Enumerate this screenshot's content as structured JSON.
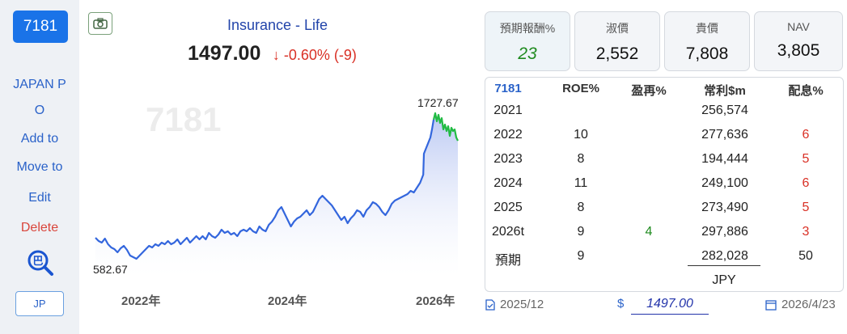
{
  "sidebar": {
    "code": "7181",
    "name_line1": "JAPAN P",
    "name_line2": "O",
    "add_to": "Add to",
    "move_to": "Move to",
    "edit": "Edit",
    "delete": "Delete",
    "ba_icon_text": "巴",
    "market_button": "JP"
  },
  "header": {
    "sector": "Insurance - Life",
    "price": "1497.00",
    "change": "-0.60% (-9)"
  },
  "chart": {
    "watermark": "7181",
    "high_label": "1727.67",
    "low_label": "582.67",
    "x_ticks": [
      "2022年",
      "2024年",
      "2026年"
    ]
  },
  "stats": [
    {
      "label": "預期報酬%",
      "value": "23"
    },
    {
      "label": "淑價",
      "value": "2,552"
    },
    {
      "label": "貴價",
      "value": "7,808"
    },
    {
      "label": "NAV",
      "value": "3,805"
    }
  ],
  "table": {
    "headers": [
      "7181",
      "ROE%",
      "盈再%",
      "常利$m",
      "配息%"
    ],
    "rows": [
      [
        "2021",
        "",
        "",
        "256,574",
        ""
      ],
      [
        "2022",
        "10",
        "",
        "277,636",
        "6"
      ],
      [
        "2023",
        "8",
        "",
        "194,444",
        "5"
      ],
      [
        "2024",
        "11",
        "",
        "249,100",
        "6"
      ],
      [
        "2025",
        "8",
        "",
        "273,490",
        "5"
      ],
      [
        "2026t",
        "9",
        "4",
        "297,886",
        "3"
      ],
      [
        "預期",
        "9",
        "",
        "282,028",
        "50"
      ]
    ],
    "currency": "JPY"
  },
  "footer": {
    "report_period": "2025/12",
    "currency_symbol": "$",
    "price_input": "1497.00",
    "date": "2026/4/23"
  },
  "colors": {
    "accent": "#1a73e8",
    "line": "#3366dd",
    "recent_line": "#22bb44",
    "down": "#d93025",
    "up_green": "#1e8a1e"
  }
}
